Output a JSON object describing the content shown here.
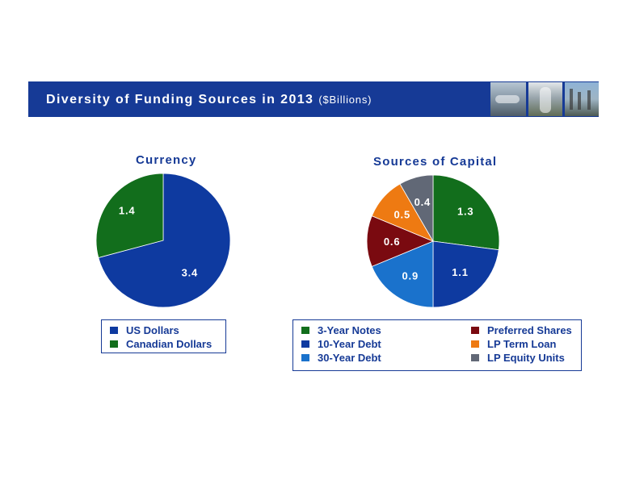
{
  "banner": {
    "title": "Diversity of Funding Sources in 2013",
    "unit": "($Billions)"
  },
  "chart_data": [
    {
      "type": "pie",
      "title": "Currency",
      "categories": [
        "US Dollars",
        "Canadian Dollars"
      ],
      "values": [
        3.4,
        1.4
      ],
      "colors": [
        "#0e3aa0",
        "#126e1c"
      ],
      "data_labels": [
        "3.4",
        "1.4"
      ],
      "legend": "bottom"
    },
    {
      "type": "pie",
      "title": "Sources of Capital",
      "categories": [
        "3-Year Notes",
        "10-Year Debt",
        "30-Year Debt",
        "Preferred Shares",
        "LP Term Loan",
        "LP Equity Units"
      ],
      "values": [
        1.3,
        1.1,
        0.9,
        0.6,
        0.5,
        0.4
      ],
      "colors": [
        "#126e1c",
        "#0e3aa0",
        "#1a72cc",
        "#7a0a10",
        "#ee7a12",
        "#616876"
      ],
      "data_labels": [
        "1.3",
        "1.1",
        "0.9",
        "0.6",
        "0.5",
        "0.4"
      ],
      "legend": "bottom"
    }
  ]
}
